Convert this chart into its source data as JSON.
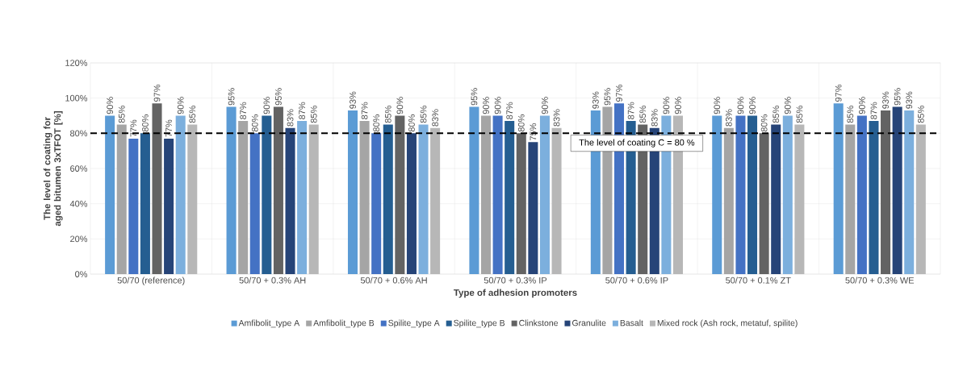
{
  "chart_data": {
    "type": "bar",
    "xlabel": "Type of adhesion promoters",
    "ylabel": "The level of coating for aged bitumen 3xTFOT [%]",
    "categories": [
      "50/70 (reference)",
      "50/70 + 0.3% AH",
      "50/70 + 0.6% AH",
      "50/70 + 0.3% IP",
      "50/70 + 0.6% IP",
      "50/70 + 0.1% ZT",
      "50/70 + 0.3% WE"
    ],
    "series": [
      {
        "name": "Amfibolit_type A",
        "color": "#5b9bd5",
        "values": [
          90,
          95,
          93,
          95,
          93,
          90,
          97
        ],
        "value_labels": [
          "90%",
          "95%",
          "93%",
          "95%",
          "93%",
          "90%",
          "97%"
        ]
      },
      {
        "name": "Amfibolit_type B",
        "color": "#a5a5a5",
        "values": [
          85,
          87,
          87,
          90,
          95,
          83,
          85
        ],
        "value_labels": [
          "85%",
          "87%",
          "87%",
          "90%",
          "95%",
          "83%",
          "85%"
        ]
      },
      {
        "name": "Spilite_type A",
        "color": "#4472c4",
        "values": [
          77,
          80,
          80,
          90,
          97,
          90,
          90
        ],
        "value_labels": [
          "77%",
          "80%",
          "80%",
          "90%",
          "97%",
          "90%",
          "90%"
        ]
      },
      {
        "name": "Spilite_type B",
        "color": "#255e91",
        "values": [
          80,
          90,
          85,
          87,
          87,
          90,
          87
        ],
        "value_labels": [
          "80%",
          "90%",
          "85%",
          "87%",
          "87%",
          "90%",
          "87%"
        ]
      },
      {
        "name": "Clinkstone",
        "color": "#636363",
        "values": [
          97,
          95,
          90,
          80,
          85,
          80,
          93
        ],
        "value_labels": [
          "97%",
          "95%",
          "90%",
          "80%",
          "85%",
          "80%",
          "93%"
        ]
      },
      {
        "name": "Granulite",
        "color": "#264478",
        "values": [
          77,
          83,
          80,
          75,
          83,
          85,
          95
        ],
        "value_labels": [
          "77%",
          "83%",
          "80%",
          "75%",
          "83%",
          "85%",
          "95%"
        ]
      },
      {
        "name": "Basalt",
        "color": "#7cafdd",
        "values": [
          90,
          87,
          85,
          90,
          90,
          90,
          93
        ],
        "value_labels": [
          "90%",
          "87%",
          "85%",
          "90%",
          "90%",
          "90%",
          "93%"
        ]
      },
      {
        "name": "Mixed rock (Ash rock, metatuf, spilite)",
        "color": "#b7b7b7",
        "values": [
          85,
          85,
          83,
          83,
          90,
          85,
          85
        ],
        "value_labels": [
          "85%",
          "85%",
          "83%",
          "83%",
          "90%",
          "85%",
          "85%"
        ]
      }
    ],
    "ylim": [
      0,
      120
    ],
    "yticks": [
      {
        "value": 0,
        "label": "0%"
      },
      {
        "value": 20,
        "label": "20%"
      },
      {
        "value": 40,
        "label": "40%"
      },
      {
        "value": 60,
        "label": "60%"
      },
      {
        "value": 80,
        "label": "80%"
      },
      {
        "value": 100,
        "label": "100%"
      },
      {
        "value": 120,
        "label": "120%"
      }
    ],
    "ref_lines": [
      {
        "axis": "y",
        "value": 80,
        "label": "The level of coating C = 80 %",
        "color": "#000000",
        "line_style": "dashed"
      }
    ],
    "grid": true,
    "legend": "bottom"
  }
}
